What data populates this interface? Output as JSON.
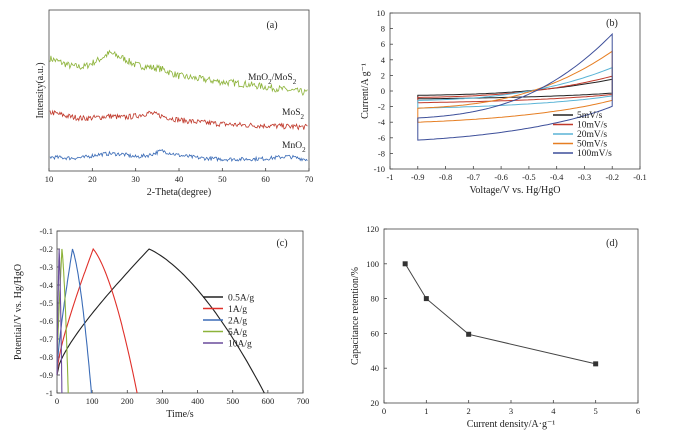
{
  "chart_data": [
    {
      "panel": "(a)",
      "type": "line",
      "xlabel": "2-Theta(degree)",
      "ylabel": "Intensity(a.u.)",
      "xlim": [
        10,
        70
      ],
      "xticks": [
        10,
        20,
        30,
        40,
        50,
        60,
        70
      ],
      "y_tick_labels": false,
      "series": [
        {
          "name": "MnO2/MoS2",
          "name_parts": [
            "MnO",
            "2",
            "/MoS",
            "2"
          ],
          "color": "#8db33a",
          "baseline": 1.0,
          "x": [
            10,
            15,
            18,
            21,
            24,
            27,
            30,
            33,
            36,
            40,
            45,
            50,
            55,
            60,
            65,
            70
          ],
          "y": [
            0.88,
            0.72,
            0.7,
            0.82,
            0.98,
            0.88,
            0.74,
            0.7,
            0.66,
            0.52,
            0.46,
            0.4,
            0.36,
            0.3,
            0.24,
            0.18
          ]
        },
        {
          "name": "MoS2",
          "name_parts": [
            "MoS",
            "2"
          ],
          "color": "#c0392b",
          "baseline": 0.5,
          "x": [
            10,
            15,
            18,
            21,
            24,
            27,
            30,
            33,
            36,
            40,
            45,
            50,
            55,
            60,
            65,
            70
          ],
          "y": [
            0.5,
            0.38,
            0.34,
            0.36,
            0.4,
            0.36,
            0.4,
            0.48,
            0.4,
            0.3,
            0.24,
            0.2,
            0.17,
            0.16,
            0.14,
            0.12
          ]
        },
        {
          "name": "MnO2",
          "name_parts": [
            "MnO",
            "2"
          ],
          "color": "#3b6cb7",
          "baseline": 0.0,
          "x": [
            10,
            15,
            18,
            21,
            24,
            27,
            30,
            33,
            36,
            40,
            45,
            50,
            55,
            60,
            65,
            70
          ],
          "y": [
            0.18,
            0.14,
            0.16,
            0.26,
            0.3,
            0.28,
            0.18,
            0.24,
            0.4,
            0.24,
            0.14,
            0.1,
            0.1,
            0.12,
            0.2,
            0.08
          ]
        }
      ]
    },
    {
      "panel": "(b)",
      "type": "line",
      "xlabel": "Voltage/V vs. Hg/HgO",
      "ylabel": "Current/A g⁻¹",
      "xlim": [
        -1,
        -0.1
      ],
      "ylim": [
        -10,
        10
      ],
      "xticks": [
        -1,
        -0.9,
        -0.8,
        -0.7,
        -0.6,
        -0.5,
        -0.4,
        -0.3,
        -0.2,
        -0.1
      ],
      "yticks": [
        -10,
        -8,
        -6,
        -4,
        -2,
        0,
        2,
        4,
        6,
        8,
        10
      ],
      "series": [
        {
          "name": "5mV/s",
          "color": "#222222",
          "upper_peak": 1.5,
          "lower_start": -1.0
        },
        {
          "name": "10mV/s",
          "color": "#c0392b",
          "upper_peak": 1.9,
          "lower_start": -1.5
        },
        {
          "name": "20mV/s",
          "color": "#5ab4d6",
          "upper_peak": 3.0,
          "lower_start": -2.2
        },
        {
          "name": "50mV/s",
          "color": "#e67e22",
          "upper_peak": 5.1,
          "lower_start": -4.0
        },
        {
          "name": "100mV/s",
          "color": "#3d4f9a",
          "upper_peak": 7.3,
          "lower_start": -6.3
        }
      ]
    },
    {
      "panel": "(c)",
      "type": "line",
      "xlabel": "Time/s",
      "ylabel": "Potential/V vs. Hg/HgO",
      "xlim": [
        0,
        700
      ],
      "ylim": [
        -1,
        -0.1
      ],
      "xticks": [
        0,
        100,
        200,
        300,
        400,
        500,
        600,
        700
      ],
      "yticks": [
        -1,
        -0.9,
        -0.8,
        -0.7,
        -0.6,
        -0.5,
        -0.4,
        -0.3,
        -0.2,
        -0.1
      ],
      "series": [
        {
          "name": "0.5A/g",
          "color": "#222222",
          "t_peak": 262,
          "t_end": 590
        },
        {
          "name": "1A/g",
          "color": "#e0302a",
          "t_peak": 103,
          "t_end": 228
        },
        {
          "name": "2A/g",
          "color": "#3b6cb7",
          "t_peak": 44,
          "t_end": 98
        },
        {
          "name": "5A/g",
          "color": "#8db33a",
          "t_peak": 14,
          "t_end": 32
        },
        {
          "name": "10A/g",
          "color": "#6a4c9c",
          "t_peak": 6,
          "t_end": 14
        }
      ]
    },
    {
      "panel": "(d)",
      "type": "line",
      "xlabel": "Current density/A·g⁻¹",
      "ylabel": "Capacitance retention/%",
      "xlim": [
        0,
        6
      ],
      "ylim": [
        20,
        120
      ],
      "xticks": [
        0,
        1,
        2,
        3,
        4,
        5,
        6
      ],
      "yticks": [
        20,
        40,
        60,
        80,
        100,
        120
      ],
      "series": [
        {
          "color": "#444444",
          "x": [
            0.5,
            1,
            2,
            5
          ],
          "y": [
            100,
            80,
            59.5,
            42.5
          ]
        }
      ]
    }
  ]
}
